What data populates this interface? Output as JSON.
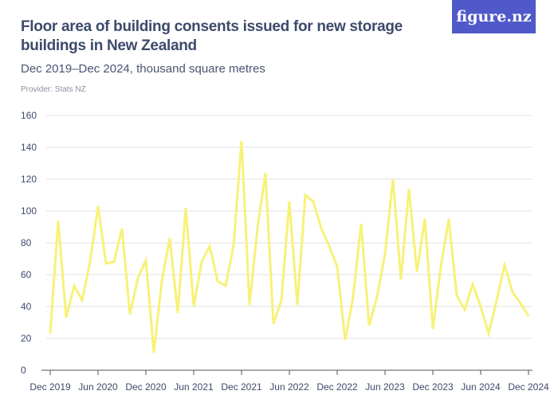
{
  "title": "Floor area of building consents issued for new storage buildings in New Zealand",
  "subtitle": "Dec 2019–Dec 2024, thousand square metres",
  "provider": "Provider: Stats NZ",
  "logo": "figure.nz",
  "colors": {
    "line": "#f7f279",
    "logo_bg": "#5059c9",
    "text": "#3d4a6b",
    "grid": "#e0e0e0"
  },
  "chart_data": {
    "type": "line",
    "title": "Floor area of building consents issued for new storage buildings in New Zealand",
    "subtitle": "Dec 2019–Dec 2024, thousand square metres",
    "x_start": "Dec 2019",
    "x_end": "Dec 2024",
    "x_frequency": "monthly",
    "x_tick_labels": [
      "Dec 2019",
      "Jun 2020",
      "Dec 2020",
      "Jun 2021",
      "Dec 2021",
      "Jun 2022",
      "Dec 2022",
      "Jun 2023",
      "Dec 2023",
      "Jun 2024",
      "Dec 2024"
    ],
    "y_tick_labels": [
      "0",
      "20",
      "40",
      "60",
      "80",
      "100",
      "120",
      "140",
      "160"
    ],
    "ylim": [
      0,
      160
    ],
    "grid": true,
    "values": [
      23,
      94,
      33,
      53,
      44,
      68,
      103,
      67,
      68,
      89,
      35,
      58,
      69,
      11,
      56,
      83,
      36,
      102,
      40,
      68,
      78,
      56,
      53,
      78,
      144,
      41,
      89,
      124,
      29,
      44,
      106,
      41,
      110,
      106,
      89,
      78,
      65,
      19,
      46,
      92,
      28,
      46,
      73,
      120,
      57,
      114,
      62,
      95,
      26,
      65,
      95,
      47,
      38,
      54,
      40,
      23,
      44,
      66,
      49,
      42,
      34
    ]
  }
}
